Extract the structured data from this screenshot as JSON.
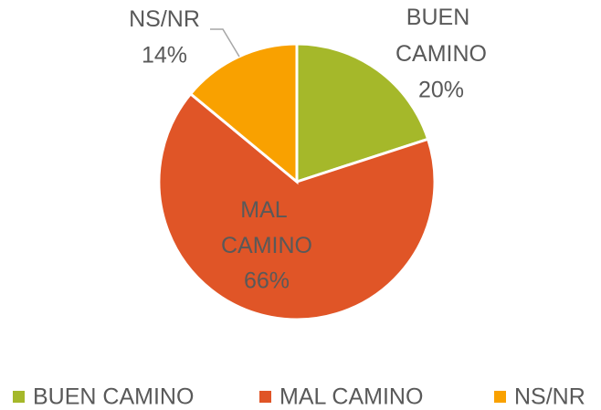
{
  "chart_data": {
    "type": "pie",
    "categories": [
      "BUEN CAMINO",
      "MAL CAMINO",
      "NS/NR"
    ],
    "values": [
      20,
      66,
      14
    ],
    "value_labels": [
      "20%",
      "66%",
      "14%"
    ],
    "colors": [
      "#a5b82a",
      "#e05527",
      "#f9a100"
    ],
    "legend": "bottom"
  }
}
